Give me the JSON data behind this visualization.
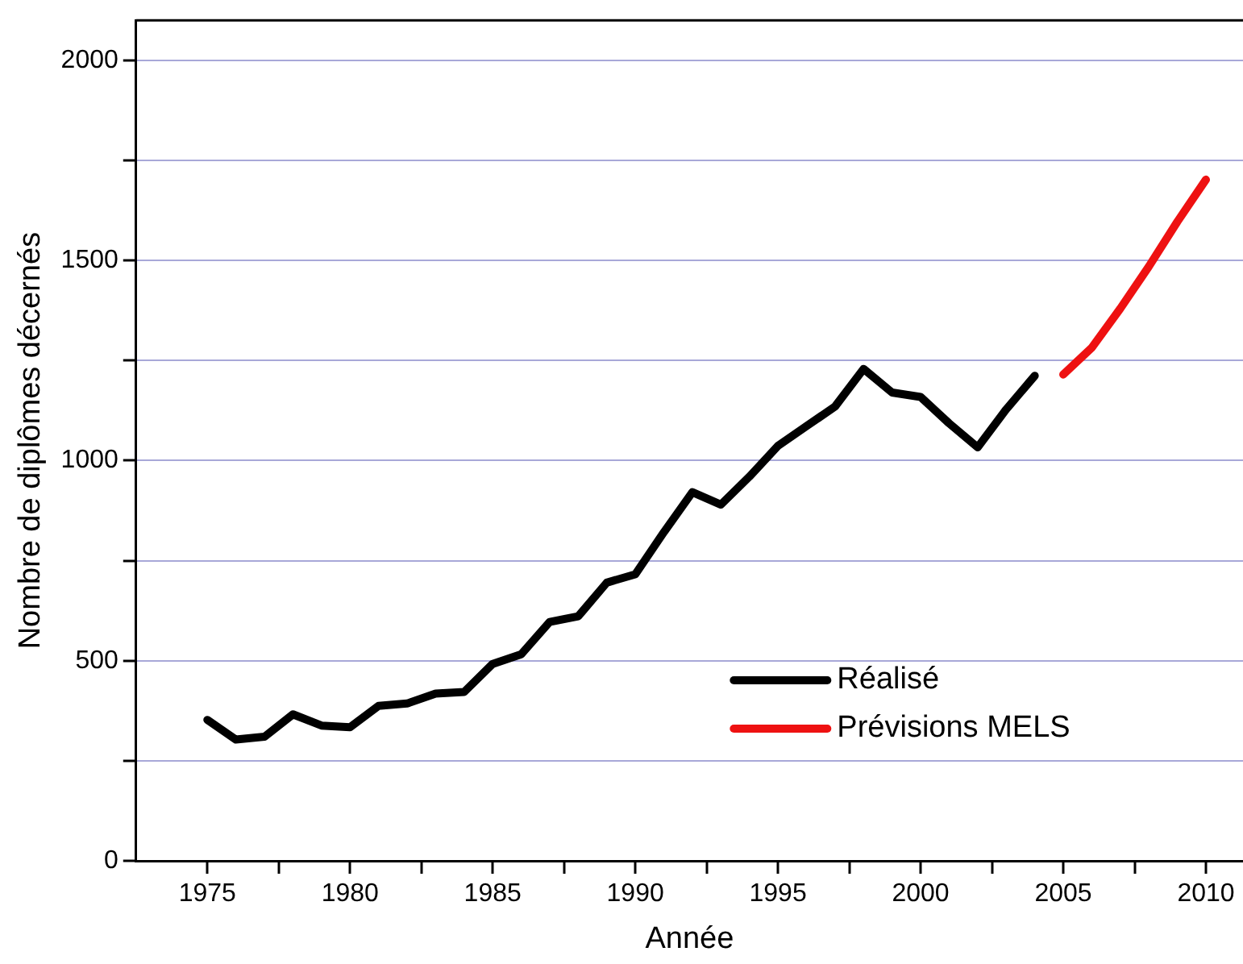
{
  "chart_data": {
    "type": "line",
    "xlabel": "Année",
    "ylabel": "Nombre de diplômes décernés",
    "xlim": [
      1972.5,
      2011.3
    ],
    "ylim": [
      0,
      2100
    ],
    "xticks": [
      {
        "value": 1975,
        "label": "1975"
      },
      {
        "value": 1977.5,
        "label": null
      },
      {
        "value": 1980,
        "label": "1980"
      },
      {
        "value": 1982.5,
        "label": null
      },
      {
        "value": 1985,
        "label": "1985"
      },
      {
        "value": 1987.5,
        "label": null
      },
      {
        "value": 1990,
        "label": "1990"
      },
      {
        "value": 1992.5,
        "label": null
      },
      {
        "value": 1995,
        "label": "1995"
      },
      {
        "value": 1997.5,
        "label": null
      },
      {
        "value": 2000,
        "label": "2000"
      },
      {
        "value": 2002.5,
        "label": null
      },
      {
        "value": 2005,
        "label": "2005"
      },
      {
        "value": 2007.5,
        "label": null
      },
      {
        "value": 2010,
        "label": "2010"
      }
    ],
    "yticks": [
      0,
      {
        "value": 250,
        "label": null
      },
      500,
      {
        "value": 750,
        "label": null
      },
      1000,
      {
        "value": 1250,
        "label": null
      },
      1500,
      {
        "value": 1750,
        "label": null
      },
      2000
    ],
    "grid": "y",
    "legend": "bottom right",
    "marker": "none",
    "line_style": "solid",
    "series": [
      {
        "name": "Réalisé",
        "color": "#000000",
        "x": [
          1975,
          1976,
          1977,
          1978,
          1979,
          1980,
          1981,
          1982,
          1983,
          1984,
          1985,
          1986,
          1987,
          1988,
          1989,
          1990,
          1991,
          1992,
          1993,
          1994,
          1995,
          1996,
          1997,
          1998,
          1999,
          2000,
          2001,
          2002,
          2003,
          2004
        ],
        "values": [
          352,
          303,
          310,
          366,
          338,
          334,
          387,
          393,
          418,
          422,
          492,
          516,
          597,
          611,
          695,
          716,
          821,
          921,
          890,
          960,
          1037,
          1086,
          1135,
          1229,
          1170,
          1159,
          1093,
          1033,
          1128,
          1212
        ]
      },
      {
        "name": "Prévisions MELS",
        "color": "#ee1111",
        "x": [
          2005,
          2006,
          2007,
          2008,
          2009,
          2010
        ],
        "values": [
          1215,
          1282,
          1380,
          1485,
          1597,
          1702
        ]
      }
    ]
  }
}
